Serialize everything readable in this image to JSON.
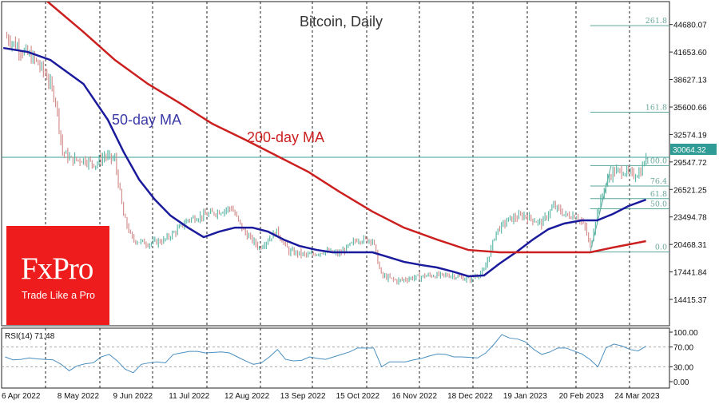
{
  "chart_data": {
    "type": "line",
    "title": "Bitcoin, Daily",
    "instrument_panel": "price bars (OHLC) with moving averages and Fibonacci levels",
    "ylim": [
      12500,
      46500
    ],
    "y_ticks": [
      "44680.07",
      "41653.60",
      "38627.13",
      "35600.66",
      "32574.19",
      "29547.72",
      "26521.25",
      "23494.78",
      "20468.31",
      "17441.84",
      "14415.37"
    ],
    "x_ticks": [
      "6 Apr 2022",
      "8 May 2022",
      "9 Jun 2022",
      "11 Jul 2022",
      "12 Aug 2022",
      "13 Sep 2022",
      "15 Oct 2022",
      "16 Nov 2022",
      "18 Dec 2022",
      "19 Jan 2023",
      "20 Feb 2023",
      "24 Mar 2023"
    ],
    "x_tick_dates": [
      "2022-04-06",
      "2022-05-08",
      "2022-06-09",
      "2022-07-11",
      "2022-08-12",
      "2022-09-13",
      "2022-10-15",
      "2022-11-16",
      "2022-12-18",
      "2023-01-19",
      "2023-02-20",
      "2023-03-24"
    ],
    "grid": "vertical dashed",
    "current_price": "30064.32",
    "current_price_value": 30064.32,
    "colors": {
      "bull": "#5fb8a8",
      "bear": "#d4908f",
      "ma50": "#1a1a9c",
      "ma200": "#cc2020",
      "fib": "#5aa89a",
      "price_line": "#3a9c94",
      "logo": "#ee1c1c"
    },
    "series": [
      {
        "name": "Price",
        "kind": "bars",
        "points": [
          [
            "2022-04-08",
            43400
          ],
          [
            "2022-04-16",
            42100
          ],
          [
            "2022-04-25",
            40800
          ],
          [
            "2022-05-02",
            39000
          ],
          [
            "2022-05-07",
            36400
          ],
          [
            "2022-05-11",
            30650
          ],
          [
            "2022-05-16",
            29800
          ],
          [
            "2022-05-23",
            29800
          ],
          [
            "2022-05-30",
            29300
          ],
          [
            "2022-06-04",
            30200
          ],
          [
            "2022-06-10",
            29800
          ],
          [
            "2022-06-15",
            23600
          ],
          [
            "2022-06-20",
            21000
          ],
          [
            "2022-06-29",
            20560
          ],
          [
            "2022-07-08",
            20900
          ],
          [
            "2022-07-15",
            21900
          ],
          [
            "2022-07-22",
            23200
          ],
          [
            "2022-07-31",
            23650
          ],
          [
            "2022-08-09",
            24100
          ],
          [
            "2022-08-16",
            24500
          ],
          [
            "2022-08-23",
            21900
          ],
          [
            "2022-09-01",
            20100
          ],
          [
            "2022-09-11",
            21900
          ],
          [
            "2022-09-18",
            19700
          ],
          [
            "2022-09-29",
            19250
          ],
          [
            "2022-10-08",
            19700
          ],
          [
            "2022-10-17",
            19430
          ],
          [
            "2022-10-27",
            21000
          ],
          [
            "2022-11-05",
            21000
          ],
          [
            "2022-11-10",
            17050
          ],
          [
            "2022-11-19",
            16450
          ],
          [
            "2022-11-28",
            16800
          ],
          [
            "2022-12-07",
            17050
          ],
          [
            "2022-12-21",
            17050
          ],
          [
            "2022-12-30",
            16600
          ],
          [
            "2023-01-08",
            17500
          ],
          [
            "2023-01-15",
            21900
          ],
          [
            "2023-01-22",
            23200
          ],
          [
            "2023-01-31",
            23650
          ],
          [
            "2023-02-10",
            22780
          ],
          [
            "2023-02-17",
            24700
          ],
          [
            "2023-02-24",
            23650
          ],
          [
            "2023-03-02",
            23650
          ],
          [
            "2023-03-07",
            22330
          ],
          [
            "2023-03-10",
            20130
          ],
          [
            "2023-03-14",
            24100
          ],
          [
            "2023-03-19",
            27150
          ],
          [
            "2023-03-23",
            28500
          ],
          [
            "2023-03-30",
            28500
          ],
          [
            "2023-04-04",
            28050
          ],
          [
            "2023-04-08",
            28500
          ],
          [
            "2023-04-11",
            30064.32
          ]
        ]
      },
      {
        "name": "50-day MA",
        "kind": "line",
        "color": "#1a1a9c",
        "points": [
          [
            "2022-04-07",
            42100
          ],
          [
            "2022-04-21",
            41660
          ],
          [
            "2022-05-04",
            40780
          ],
          [
            "2022-05-23",
            38140
          ],
          [
            "2022-06-06",
            34190
          ],
          [
            "2022-06-15",
            30670
          ],
          [
            "2022-06-24",
            27600
          ],
          [
            "2022-07-03",
            25400
          ],
          [
            "2022-07-12",
            23640
          ],
          [
            "2022-07-22",
            22320
          ],
          [
            "2022-07-31",
            21270
          ],
          [
            "2022-08-09",
            21880
          ],
          [
            "2022-08-18",
            22320
          ],
          [
            "2022-08-28",
            22320
          ],
          [
            "2022-09-06",
            21880
          ],
          [
            "2022-09-15",
            21000
          ],
          [
            "2022-09-24",
            20300
          ],
          [
            "2022-10-04",
            19860
          ],
          [
            "2022-10-13",
            19600
          ],
          [
            "2022-10-27",
            19600
          ],
          [
            "2022-11-05",
            19600
          ],
          [
            "2022-11-14",
            19080
          ],
          [
            "2022-11-23",
            18550
          ],
          [
            "2022-12-03",
            18200
          ],
          [
            "2022-12-12",
            17930
          ],
          [
            "2022-12-21",
            17490
          ],
          [
            "2022-12-30",
            16970
          ],
          [
            "2023-01-08",
            17050
          ],
          [
            "2023-01-17",
            18370
          ],
          [
            "2023-01-27",
            19690
          ],
          [
            "2023-02-05",
            21000
          ],
          [
            "2023-02-14",
            22150
          ],
          [
            "2023-02-23",
            22770
          ],
          [
            "2023-03-05",
            23120
          ],
          [
            "2023-03-14",
            23120
          ],
          [
            "2023-03-23",
            23820
          ],
          [
            "2023-04-01",
            24700
          ],
          [
            "2023-04-11",
            25400
          ]
        ]
      },
      {
        "name": "200-day MA",
        "kind": "line",
        "color": "#cc2020",
        "points": [
          [
            "2022-04-07",
            51300
          ],
          [
            "2022-05-04",
            46940
          ],
          [
            "2022-05-23",
            43860
          ],
          [
            "2022-06-10",
            40780
          ],
          [
            "2022-06-29",
            38140
          ],
          [
            "2022-07-18",
            35950
          ],
          [
            "2022-08-05",
            33750
          ],
          [
            "2022-08-24",
            31990
          ],
          [
            "2022-09-11",
            30230
          ],
          [
            "2022-09-29",
            28470
          ],
          [
            "2022-10-17",
            26270
          ],
          [
            "2022-11-05",
            24080
          ],
          [
            "2022-11-23",
            22320
          ],
          [
            "2022-12-12",
            21000
          ],
          [
            "2022-12-30",
            19860
          ],
          [
            "2023-01-17",
            19600
          ],
          [
            "2023-02-05",
            19600
          ],
          [
            "2023-02-23",
            19600
          ],
          [
            "2023-03-10",
            19600
          ],
          [
            "2023-03-23",
            20130
          ],
          [
            "2023-04-11",
            20830
          ]
        ]
      }
    ],
    "fibonacci": {
      "from_date": "2023-03-10",
      "to_date": "2023-03-22",
      "levels": [
        {
          "label": "261.8",
          "price": 44553
        },
        {
          "label": "161.8",
          "price": 35033
        },
        {
          "label": "100.0",
          "price": 29150
        },
        {
          "label": "76.4",
          "price": 26900
        },
        {
          "label": "61.8",
          "price": 25510
        },
        {
          "label": "50.0",
          "price": 24390
        },
        {
          "label": "0.0",
          "price": 19630
        }
      ]
    },
    "annotations": [
      {
        "text": "50-day MA",
        "color": "#3a3aa8"
      },
      {
        "text": "200-day MA",
        "color": "#cc2020"
      }
    ],
    "rsi": {
      "label": "RSI(14) 71.48",
      "ylim": [
        0,
        100
      ],
      "y_ticks": [
        "100.00",
        "70.00",
        "30.00",
        "0.00"
      ],
      "levels": [
        70,
        30
      ],
      "color": "#4a8fc0",
      "values": [
        50,
        44,
        45,
        48,
        46,
        45,
        44,
        35,
        22,
        32,
        36,
        38,
        50,
        55,
        42,
        25,
        18,
        35,
        38,
        40,
        38,
        55,
        58,
        61,
        61,
        58,
        59,
        60,
        58,
        50,
        42,
        35,
        38,
        50,
        65,
        45,
        42,
        43,
        50,
        47,
        45,
        50,
        55,
        60,
        68,
        68,
        68,
        30,
        40,
        40,
        40,
        44,
        47,
        52,
        56,
        55,
        50,
        50,
        49,
        48,
        58,
        75,
        95,
        88,
        86,
        80,
        65,
        55,
        60,
        68,
        68,
        62,
        56,
        45,
        30,
        68,
        76,
        72,
        65,
        62,
        71.48
      ]
    }
  },
  "logo": {
    "brand": "FxPro",
    "tagline": "Trade Like a Pro"
  }
}
